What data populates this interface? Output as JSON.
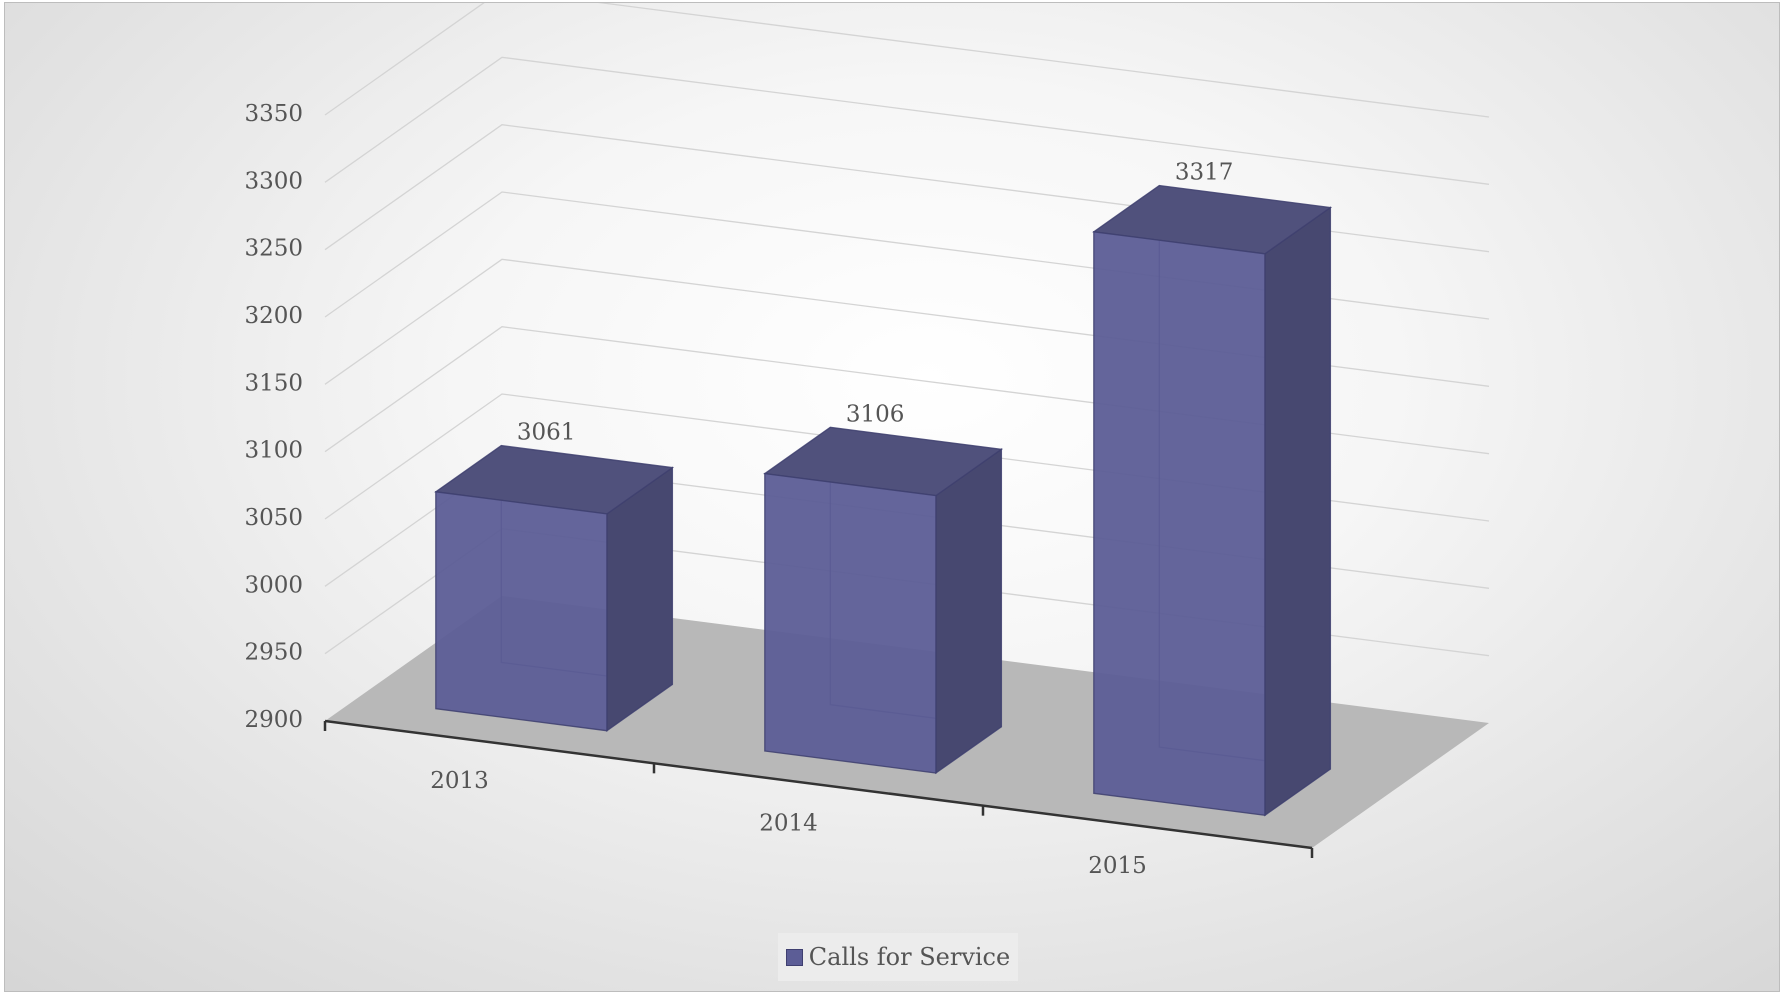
{
  "chart_data": {
    "type": "bar",
    "style": "3d-column",
    "categories": [
      "2013",
      "2014",
      "2015"
    ],
    "series": [
      {
        "name": "Calls for Service",
        "values": [
          3061,
          3106,
          3317
        ],
        "color": "#5c5d96"
      }
    ],
    "y_ticks": [
      "2900",
      "2950",
      "3000",
      "3050",
      "3100",
      "3150",
      "3200",
      "3250",
      "3300",
      "3350"
    ],
    "data_labels": [
      "3061",
      "3106",
      "3317"
    ],
    "ylim": [
      2900,
      3350
    ],
    "grid": true,
    "legend": "bottom",
    "colors": {
      "bar": "#5c5d96",
      "floor": "#b8b8b8",
      "gridline": "#d4d4d4",
      "axis": "#333333"
    }
  }
}
